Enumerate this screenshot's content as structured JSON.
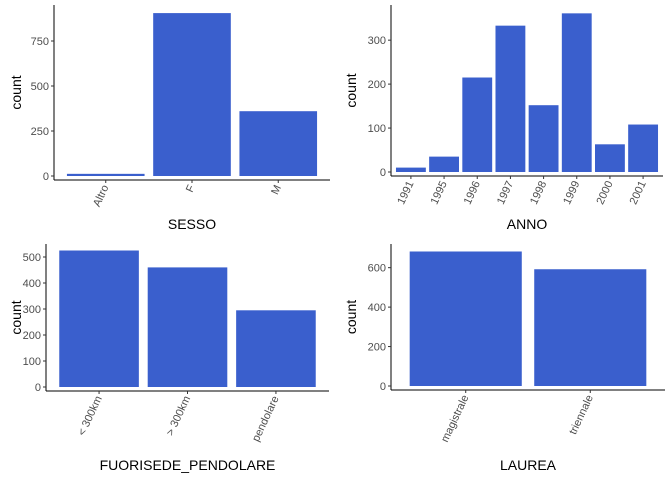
{
  "bar_color": "#3a5fcd",
  "axis_color": "#000000",
  "tick_label_color": "#4d4d4d",
  "chart_data": [
    {
      "type": "bar",
      "title": "",
      "xlabel": "SESSO",
      "ylabel": "count",
      "categories": [
        "Altro",
        "F",
        "M"
      ],
      "values": [
        12,
        905,
        360
      ],
      "ylim": [
        0,
        950
      ],
      "yticks": [
        0,
        250,
        500,
        750
      ],
      "x_tick_rotation": -65,
      "grid": false
    },
    {
      "type": "bar",
      "title": "",
      "xlabel": "ANNO",
      "ylabel": "count",
      "categories": [
        "1991",
        "1995",
        "1996",
        "1997",
        "1998",
        "1999",
        "2000",
        "2001"
      ],
      "values": [
        10,
        35,
        215,
        333,
        152,
        361,
        63,
        108
      ],
      "ylim": [
        0,
        380
      ],
      "yticks": [
        0,
        100,
        200,
        300
      ],
      "x_tick_rotation": -65,
      "grid": false
    },
    {
      "type": "bar",
      "title": "",
      "xlabel": "FUORISEDE_PENDOLARE",
      "ylabel": "count",
      "categories": [
        "< 300km",
        "> 300km",
        "pendolare"
      ],
      "values": [
        525,
        460,
        295
      ],
      "ylim": [
        0,
        550
      ],
      "yticks": [
        0,
        100,
        200,
        300,
        400,
        500
      ],
      "x_tick_rotation": -65,
      "grid": false
    },
    {
      "type": "bar",
      "title": "",
      "xlabel": "LAUREA",
      "ylabel": "count",
      "categories": [
        "magistrale",
        "triennale"
      ],
      "values": [
        682,
        592
      ],
      "ylim": [
        0,
        720
      ],
      "yticks": [
        0,
        200,
        400,
        600
      ],
      "x_tick_rotation": -65,
      "grid": false
    }
  ]
}
